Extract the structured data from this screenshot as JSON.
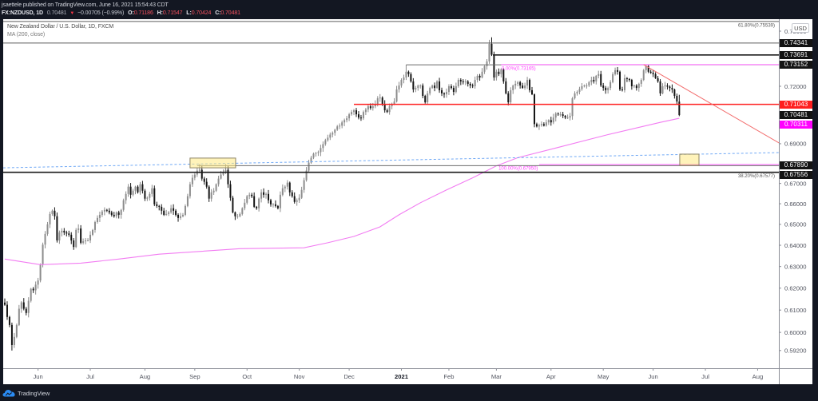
{
  "header": {
    "publisher_line": "jsaettele published on TradingView.com, June 16, 2021 15:54:43 CDT",
    "symbol": "FX:NZDUSD, 1D",
    "last": "0.70481",
    "change_arrow": "▼",
    "change": "−0.00705 (−0.99%)",
    "ohlc": [
      {
        "k": "O:",
        "v": "0.71186"
      },
      {
        "k": "H:",
        "v": "0.71547"
      },
      {
        "k": "L:",
        "v": "0.70424"
      },
      {
        "k": "C:",
        "v": "0.70481"
      }
    ]
  },
  "legend": {
    "title": "New Zealand Dollar / U.S. Dollar, 1D, FXCM",
    "indicator": "MA (200, close)"
  },
  "price_axis": {
    "currency_badge": "USD",
    "ticks": [
      "0.75000",
      "0.72000",
      "0.69000",
      "0.67000",
      "0.66000",
      "0.65000",
      "0.64000",
      "0.63000",
      "0.62000",
      "0.61000",
      "0.60000",
      "0.59200"
    ],
    "labels": [
      {
        "value": "0.74341",
        "bg": "#131313",
        "fg": "#ffffff"
      },
      {
        "value": "0.73691",
        "bg": "#131313",
        "fg": "#ffffff"
      },
      {
        "value": "0.73152",
        "bg": "#131313",
        "fg": "#ffffff"
      },
      {
        "value": "0.71043",
        "bg": "#ff1e1e",
        "fg": "#ffffff"
      },
      {
        "value": "0.70481",
        "bg": "#131313",
        "fg": "#ffffff"
      },
      {
        "value": "0.70311",
        "bg": "#ff00ff",
        "fg": "#ffffff"
      },
      {
        "value": "0.67890",
        "bg": "#131313",
        "fg": "#ffffff"
      },
      {
        "value": "0.67556",
        "bg": "#131313",
        "fg": "#ffffff"
      }
    ]
  },
  "time_axis": {
    "ticks": [
      {
        "label": "Jun",
        "date": "2020-06-01"
      },
      {
        "label": "Jul",
        "date": "2020-07-01"
      },
      {
        "label": "Aug",
        "date": "2020-08-03"
      },
      {
        "label": "Sep",
        "date": "2020-09-01"
      },
      {
        "label": "Oct",
        "date": "2020-10-01"
      },
      {
        "label": "Nov",
        "date": "2020-11-02"
      },
      {
        "label": "Dec",
        "date": "2020-12-01"
      },
      {
        "label": "2021",
        "date": "2021-01-04",
        "bold": true
      },
      {
        "label": "Feb",
        "date": "2021-02-01"
      },
      {
        "label": "Mar",
        "date": "2021-03-01"
      },
      {
        "label": "Apr",
        "date": "2021-04-01"
      },
      {
        "label": "May",
        "date": "2021-05-03"
      },
      {
        "label": "Jun",
        "date": "2021-06-01"
      },
      {
        "label": "Jul",
        "date": "2021-07-01"
      },
      {
        "label": "Aug",
        "date": "2021-08-02"
      }
    ]
  },
  "footer": {
    "brand": "TradingView"
  },
  "colors": {
    "background": "#131722",
    "chart_bg": "#ffffff",
    "up_candle": "#8c8c8c",
    "down_candle": "#141414",
    "axis_text": "#50535e",
    "axis_line": "#8a8d96",
    "header_negative": "#f7525f",
    "brand_blue": "#2a8bf2"
  },
  "chart_data": {
    "type": "candlestick",
    "title": "New Zealand Dollar / U.S. Dollar, 1D, FXCM",
    "symbol": "FX:NZDUSD",
    "interval": "1D",
    "xlabel": "",
    "ylabel": "USD",
    "scale": "log",
    "ylim": [
      0.5875,
      0.7575
    ],
    "grid": false,
    "calendar": {
      "start": "2020-05-12",
      "end": "2021-06-16",
      "holidays": [
        "2020-12-25",
        "2021-01-01"
      ]
    },
    "closes": [
      0.6124,
      0.6069,
      0.6033,
      0.5944,
      0.598,
      0.6033,
      0.6106,
      0.6135,
      0.6106,
      0.6087,
      0.6142,
      0.6197,
      0.619,
      0.6216,
      0.6235,
      0.6309,
      0.6403,
      0.6454,
      0.65,
      0.655,
      0.6566,
      0.6539,
      0.6423,
      0.6461,
      0.6469,
      0.6461,
      0.6456,
      0.645,
      0.6423,
      0.6392,
      0.6473,
      0.648,
      0.6412,
      0.6419,
      0.6423,
      0.6423,
      0.645,
      0.6473,
      0.6511,
      0.6531,
      0.6546,
      0.6562,
      0.657,
      0.6566,
      0.6558,
      0.6546,
      0.6539,
      0.6558,
      0.6546,
      0.657,
      0.6617,
      0.6648,
      0.6684,
      0.6644,
      0.6664,
      0.6684,
      0.6656,
      0.6696,
      0.6664,
      0.6625,
      0.6629,
      0.6648,
      0.6676,
      0.6597,
      0.6589,
      0.6585,
      0.6566,
      0.6546,
      0.655,
      0.6558,
      0.6578,
      0.6566,
      0.6546,
      0.6531,
      0.6539,
      0.6546,
      0.6589,
      0.6637,
      0.6696,
      0.6728,
      0.6744,
      0.6764,
      0.6768,
      0.6724,
      0.6708,
      0.6684,
      0.6625,
      0.6656,
      0.6664,
      0.6696,
      0.6724,
      0.6744,
      0.6756,
      0.6768,
      0.6696,
      0.6629,
      0.6558,
      0.6539,
      0.6539,
      0.655,
      0.6578,
      0.6605,
      0.6637,
      0.6644,
      0.6637,
      0.6585,
      0.6578,
      0.6625,
      0.6656,
      0.6644,
      0.6648,
      0.6617,
      0.6597,
      0.6597,
      0.6589,
      0.6578,
      0.6644,
      0.6676,
      0.6684,
      0.6704,
      0.6656,
      0.6637,
      0.6609,
      0.6617,
      0.6629,
      0.6668,
      0.6716,
      0.6764,
      0.6804,
      0.6829,
      0.6849,
      0.6853,
      0.6857,
      0.6878,
      0.6898,
      0.6918,
      0.6931,
      0.6947,
      0.6956,
      0.6972,
      0.6989,
      0.6993,
      0.701,
      0.7022,
      0.7031,
      0.7052,
      0.7064,
      0.7073,
      0.7052,
      0.7035,
      0.7031,
      0.7064,
      0.7077,
      0.7094,
      0.7085,
      0.7094,
      0.7106,
      0.7136,
      0.714,
      0.7106,
      0.7073,
      0.7064,
      0.7094,
      0.7106,
      0.7119,
      0.7183,
      0.7204,
      0.7234,
      0.7247,
      0.7278,
      0.7265,
      0.7226,
      0.7183,
      0.7191,
      0.7204,
      0.7204,
      0.7149,
      0.7115,
      0.7162,
      0.7191,
      0.7204,
      0.7191,
      0.7226,
      0.7179,
      0.7162,
      0.7157,
      0.717,
      0.72,
      0.7191,
      0.717,
      0.72,
      0.7234,
      0.7226,
      0.7222,
      0.7226,
      0.7213,
      0.7204,
      0.72,
      0.7234,
      0.7256,
      0.7247,
      0.7278,
      0.7308,
      0.7334,
      0.743,
      0.737,
      0.7247,
      0.7278,
      0.7265,
      0.7291,
      0.7226,
      0.7162,
      0.7115,
      0.7179,
      0.7204,
      0.7213,
      0.7222,
      0.7204,
      0.7191,
      0.7204,
      0.7234,
      0.7179,
      0.7157,
      0.7001,
      0.6989,
      0.6995,
      0.7001,
      0.6993,
      0.701,
      0.7022,
      0.701,
      0.7035,
      0.7056,
      0.7052,
      0.7052,
      0.7044,
      0.7035,
      0.7035,
      0.7043,
      0.7136,
      0.7162,
      0.717,
      0.7185,
      0.72,
      0.7204,
      0.7204,
      0.7222,
      0.7234,
      0.7226,
      0.7256,
      0.7265,
      0.7204,
      0.7192,
      0.7179,
      0.7191,
      0.7222,
      0.7265,
      0.7286,
      0.7278,
      0.7183,
      0.7179,
      0.7243,
      0.7239,
      0.7234,
      0.72,
      0.7204,
      0.7191,
      0.7213,
      0.7234,
      0.7286,
      0.7308,
      0.7278,
      0.7272,
      0.7265,
      0.7243,
      0.7226,
      0.7162,
      0.72,
      0.7204,
      0.7198,
      0.7191,
      0.7183,
      0.7149,
      0.7119,
      0.70481
    ],
    "ohlc_overrides": [
      {
        "i": 3,
        "l": 0.592
      },
      {
        "i": 82,
        "h": 0.6797
      },
      {
        "i": 93,
        "h": 0.6797
      },
      {
        "i": 169,
        "h": 0.7316
      },
      {
        "i": 204,
        "h": 0.7452
      },
      {
        "i": 205,
        "o": 0.743,
        "h": 0.7466
      },
      {
        "i": 270,
        "h": 0.7316
      },
      {
        "i": 284,
        "o": 0.71186,
        "h": 0.71547,
        "l": 0.70424
      }
    ],
    "last_bar": {
      "date": "2021-06-16",
      "open": 0.71186,
      "high": 0.71547,
      "low": 0.70424,
      "close": 0.70481
    },
    "indicators": [
      {
        "name": "MA (200, close)",
        "color": "#f27cf2",
        "last_value": 0.70311,
        "points": [
          [
            0,
            0.6335
          ],
          [
            15,
            0.6309
          ],
          [
            32,
            0.6316
          ],
          [
            48,
            0.6335
          ],
          [
            65,
            0.6358
          ],
          [
            99,
            0.6384
          ],
          [
            126,
            0.6388
          ],
          [
            136,
            0.6412
          ],
          [
            147,
            0.6442
          ],
          [
            158,
            0.6488
          ],
          [
            166,
            0.6546
          ],
          [
            175,
            0.6605
          ],
          [
            186,
            0.6668
          ],
          [
            197,
            0.6728
          ],
          [
            207,
            0.6788
          ],
          [
            216,
            0.6829
          ],
          [
            232,
            0.6878
          ],
          [
            254,
            0.6947
          ],
          [
            276,
            0.701
          ],
          [
            284,
            0.7031
          ]
        ]
      }
    ],
    "drawings": [
      {
        "name": "fib-61.8-line",
        "type": "hline",
        "price": 0.75539,
        "from": "start",
        "to": "end",
        "color": "#5d5d5d",
        "width": 1
      },
      {
        "name": "resistance-0.74341",
        "type": "hline",
        "price": 0.74341,
        "from": "start",
        "to": "end",
        "color": "#5d5d5d",
        "width": 1
      },
      {
        "name": "resistance-0.73691",
        "type": "hline",
        "price": 0.73691,
        "from": 205.5,
        "to": "end",
        "color": "#1a1a1a",
        "width": 1.6
      },
      {
        "name": "resistance-0.73152",
        "type": "hline",
        "price": 0.73152,
        "from": 169,
        "to": "end",
        "color": "#6b6b6b",
        "width": 1
      },
      {
        "name": "fib-0-line",
        "type": "hline",
        "price": 0.73165,
        "from": 209,
        "to": "end",
        "color": "#ff80ff",
        "width": 1.2
      },
      {
        "name": "support-0.71043",
        "type": "hline",
        "price": 0.71043,
        "from": 147,
        "to": "end",
        "color": "#ff1f1f",
        "width": 1.4
      },
      {
        "name": "descending-trendline",
        "type": "line",
        "i1": 269,
        "p1": 0.7316,
        "i2": 326.6,
        "p2": 0.69,
        "color": "#f26b6b",
        "width": 1
      },
      {
        "name": "blue-dashed-trendline",
        "type": "line",
        "i1": -0.7,
        "p1": 0.6778,
        "i2": 326.6,
        "p2": 0.6855,
        "color": "#6fa8f5",
        "width": 1,
        "dash": "3,2.5"
      },
      {
        "name": "level-0.67890",
        "type": "hline",
        "price": 0.6789,
        "from": 81,
        "to": "end",
        "color": "#6b6b6b",
        "width": 1
      },
      {
        "name": "fib-100-line",
        "type": "hline",
        "price": 0.6795,
        "from": 225,
        "to": "end",
        "color": "#ff80ff",
        "width": 1.2
      },
      {
        "name": "level-0.67556",
        "type": "hline",
        "price": 0.67556,
        "from": "start",
        "to": "end",
        "color": "#1a1a1a",
        "width": 1.6
      },
      {
        "name": "highlight-box-sep-2020",
        "type": "rect",
        "i1": 78,
        "i2": 97.2,
        "p1": 0.6827,
        "p2": 0.6778,
        "fill": "rgba(255,234,130,0.55)",
        "stroke": "#8d8465"
      },
      {
        "name": "highlight-box-target",
        "type": "rect",
        "i1": 284.2,
        "i2": 292.3,
        "p1": 0.6847,
        "p2": 0.679,
        "fill": "rgba(255,234,130,0.55)",
        "stroke": "#8d8465"
      }
    ],
    "annotations": [
      {
        "text": "61.80%(0.75539)",
        "price": 0.75539,
        "x": "end",
        "anchor": "end",
        "dy": 6.5,
        "color": "#555555"
      },
      {
        "text": "0.00%(0.73165)",
        "price": 0.73165,
        "i": 209.2,
        "anchor": "start",
        "dy": 6.5,
        "color": "#ff40ff"
      },
      {
        "text": "100.00%(0.67950)",
        "price": 0.6795,
        "i": 224.5,
        "anchor": "end",
        "dy": 6.5,
        "color": "#ff40ff"
      },
      {
        "text": "38.20%(0.67577)",
        "price": 0.67577,
        "x": "end",
        "anchor": "end",
        "dy": 7,
        "color": "#555555"
      }
    ]
  }
}
